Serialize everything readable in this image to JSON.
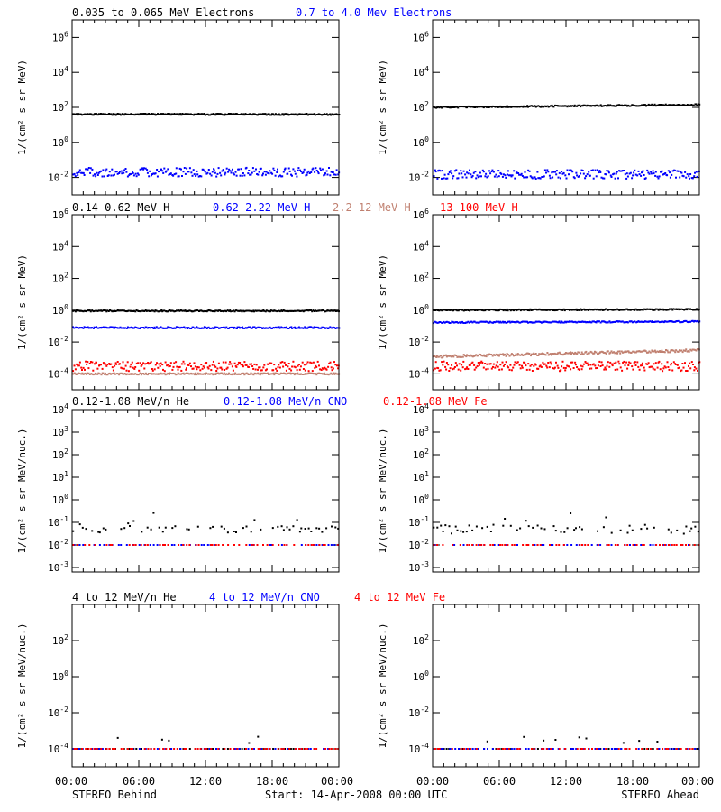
{
  "figure": {
    "left_footer": "STEREO Behind",
    "center_footer": "Start: 14-Apr-2008 00:00 UTC",
    "right_footer": "STEREO Ahead",
    "x_ticks": [
      "00:00",
      "06:00",
      "12:00",
      "18:00",
      "00:00"
    ]
  },
  "rows": [
    {
      "titles": [
        {
          "text": "0.035 to 0.065 MeV Electrons",
          "color": "#000000"
        },
        {
          "text": "0.7 to 4.0 Mev Electrons",
          "color": "#0000ff"
        }
      ],
      "ylabel": "1/(cm² s sr MeV)",
      "ylim_exp": [
        -3,
        7
      ],
      "ticks": [
        {
          "exp": 6,
          "label": "10^6"
        },
        {
          "exp": 4,
          "label": "10^4"
        },
        {
          "exp": 2,
          "label": "10^2"
        },
        {
          "exp": 0,
          "label": "10^0"
        },
        {
          "exp": -2,
          "label": "10^-2"
        }
      ]
    },
    {
      "titles": [
        {
          "text": "0.14-0.62 MeV H",
          "color": "#000000"
        },
        {
          "text": "0.62-2.22 MeV H",
          "color": "#0000ff"
        },
        {
          "text": "2.2-12 MeV H",
          "color": "#c08070"
        },
        {
          "text": "13-100 MeV H",
          "color": "#ff0000"
        }
      ],
      "ylabel": "1/(cm² s sr MeV)",
      "ylim_exp": [
        -5,
        6
      ],
      "ticks": [
        {
          "exp": 6,
          "label": "10^6"
        },
        {
          "exp": 4,
          "label": "10^4"
        },
        {
          "exp": 2,
          "label": "10^2"
        },
        {
          "exp": 0,
          "label": "10^0"
        },
        {
          "exp": -2,
          "label": "10^-2"
        },
        {
          "exp": -4,
          "label": "10^-4"
        }
      ]
    },
    {
      "titles": [
        {
          "text": "0.12-1.08 MeV/n He",
          "color": "#000000"
        },
        {
          "text": "0.12-1.08 MeV/n CNO",
          "color": "#0000ff"
        },
        {
          "text": "0.12-1.08 MeV Fe",
          "color": "#ff0000"
        }
      ],
      "ylabel": "1/(cm² s sr MeV/nuc.)",
      "ylim_exp": [
        -3.2,
        4
      ],
      "ticks": [
        {
          "exp": 4,
          "label": "10^4"
        },
        {
          "exp": 3,
          "label": "10^3"
        },
        {
          "exp": 2,
          "label": "10^2"
        },
        {
          "exp": 1,
          "label": "10^1"
        },
        {
          "exp": 0,
          "label": "10^0"
        },
        {
          "exp": -1,
          "label": "10^-1"
        },
        {
          "exp": -2,
          "label": "10^-2"
        },
        {
          "exp": -3,
          "label": "10^-3"
        }
      ]
    },
    {
      "titles": [
        {
          "text": "4 to 12 MeV/n He",
          "color": "#000000"
        },
        {
          "text": "4 to 12 MeV/n CNO",
          "color": "#0000ff"
        },
        {
          "text": "4 to 12 MeV Fe",
          "color": "#ff0000"
        }
      ],
      "ylabel": "1/(cm² s sr MeV/nuc.)",
      "ylim_exp": [
        -5,
        4
      ],
      "ticks": [
        {
          "exp": 2,
          "label": "10^2"
        },
        {
          "exp": 0,
          "label": "10^0"
        },
        {
          "exp": -2,
          "label": "10^-2"
        },
        {
          "exp": -4,
          "label": "10^-4"
        }
      ]
    }
  ],
  "chart_data": [
    {
      "type": "scatter",
      "panel": "STEREO Behind electrons",
      "yscale": "log",
      "x_range_hours": [
        0,
        24
      ],
      "series": [
        {
          "name": "0.035 to 0.065 MeV Electrons",
          "color": "#000000",
          "level": 40,
          "spread_exp": 0.04,
          "trend_exp": 0
        },
        {
          "name": "0.7 to 4.0 Mev Electrons",
          "color": "#0000ff",
          "level": 0.02,
          "spread_exp": 0.25,
          "trend_exp": 0
        }
      ]
    },
    {
      "type": "scatter",
      "panel": "STEREO Ahead electrons",
      "yscale": "log",
      "x_range_hours": [
        0,
        24
      ],
      "series": [
        {
          "name": "0.035 to 0.065 MeV Electrons",
          "color": "#000000",
          "level": 100,
          "spread_exp": 0.04,
          "trend_exp": 0.15
        },
        {
          "name": "0.7 to 4.0 Mev Electrons",
          "color": "#0000ff",
          "level": 0.015,
          "spread_exp": 0.25,
          "trend_exp": 0
        }
      ]
    },
    {
      "type": "scatter",
      "panel": "STEREO Behind protons",
      "yscale": "log",
      "x_range_hours": [
        0,
        24
      ],
      "series": [
        {
          "name": "0.14-0.62 MeV H",
          "color": "#000000",
          "level": 0.9,
          "spread_exp": 0.04,
          "trend_exp": 0
        },
        {
          "name": "0.62-2.22 MeV H",
          "color": "#0000ff",
          "level": 0.08,
          "spread_exp": 0.05,
          "trend_exp": 0
        },
        {
          "name": "2.2-12 MeV H",
          "color": "#c08070",
          "level": 0.0001,
          "spread_exp": 0.05,
          "trend_exp": 0
        },
        {
          "name": "13-100 MeV H",
          "color": "#ff0000",
          "level": 0.0003,
          "spread_exp": 0.3,
          "trend_exp": 0
        }
      ]
    },
    {
      "type": "scatter",
      "panel": "STEREO Ahead protons",
      "yscale": "log",
      "x_range_hours": [
        0,
        24
      ],
      "series": [
        {
          "name": "0.14-0.62 MeV H",
          "color": "#000000",
          "level": 1.0,
          "spread_exp": 0.04,
          "trend_exp": 0.05
        },
        {
          "name": "0.62-2.22 MeV H",
          "color": "#0000ff",
          "level": 0.17,
          "spread_exp": 0.04,
          "trend_exp": 0.05
        },
        {
          "name": "2.2-12 MeV H",
          "color": "#c08070",
          "level": 0.0012,
          "spread_exp": 0.08,
          "trend_exp": 0.4
        },
        {
          "name": "13-100 MeV H",
          "color": "#ff0000",
          "level": 0.0003,
          "spread_exp": 0.3,
          "trend_exp": 0
        }
      ]
    },
    {
      "type": "scatter",
      "panel": "STEREO Behind 0.12-1.08 MeV/n heavy ions",
      "yscale": "log",
      "x_range_hours": [
        0,
        24
      ],
      "series": [
        {
          "name": "0.12-1.08 MeV/n He",
          "color": "#000000",
          "level": 0.05,
          "spread_exp": 0.15,
          "trend_exp": 0,
          "sparse": true
        },
        {
          "name": "0.12-1.08 MeV/n CNO",
          "color": "#0000ff",
          "level": 0.01,
          "spread_exp": 0,
          "trend_exp": 0,
          "sparse": true
        },
        {
          "name": "0.12-1.08 MeV Fe",
          "color": "#ff0000",
          "level": 0.01,
          "spread_exp": 0,
          "trend_exp": 0,
          "sparse": true
        }
      ]
    },
    {
      "type": "scatter",
      "panel": "STEREO Ahead 0.12-1.08 MeV/n heavy ions",
      "yscale": "log",
      "x_range_hours": [
        0,
        24
      ],
      "series": [
        {
          "name": "0.12-1.08 MeV/n He",
          "color": "#000000",
          "level": 0.05,
          "spread_exp": 0.2,
          "trend_exp": 0,
          "sparse": true
        },
        {
          "name": "0.12-1.08 MeV/n CNO",
          "color": "#0000ff",
          "level": 0.01,
          "spread_exp": 0,
          "trend_exp": 0,
          "sparse": true
        },
        {
          "name": "0.12-1.08 MeV Fe",
          "color": "#ff0000",
          "level": 0.01,
          "spread_exp": 0,
          "trend_exp": 0,
          "sparse": true
        }
      ]
    },
    {
      "type": "scatter",
      "panel": "STEREO Behind 4-12 MeV/n heavy ions",
      "yscale": "log",
      "x_range_hours": [
        0,
        24
      ],
      "series": [
        {
          "name": "4 to 12 MeV/n He",
          "color": "#000000",
          "level": 0.0001,
          "spread_exp": 0,
          "trend_exp": 0,
          "sparse": true
        },
        {
          "name": "4 to 12 MeV/n CNO",
          "color": "#0000ff",
          "level": 0.0001,
          "spread_exp": 0,
          "trend_exp": 0,
          "sparse": true
        },
        {
          "name": "4 to 12 MeV Fe",
          "color": "#ff0000",
          "level": 0.0001,
          "spread_exp": 0,
          "trend_exp": 0,
          "sparse": true
        }
      ]
    },
    {
      "type": "scatter",
      "panel": "STEREO Ahead 4-12 MeV/n heavy ions",
      "yscale": "log",
      "x_range_hours": [
        0,
        24
      ],
      "series": [
        {
          "name": "4 to 12 MeV/n He",
          "color": "#000000",
          "level": 0.0001,
          "spread_exp": 0,
          "trend_exp": 0,
          "sparse": true
        },
        {
          "name": "4 to 12 MeV/n CNO",
          "color": "#0000ff",
          "level": 0.0001,
          "spread_exp": 0,
          "trend_exp": 0,
          "sparse": true
        },
        {
          "name": "4 to 12 MeV Fe",
          "color": "#ff0000",
          "level": 0.0001,
          "spread_exp": 0,
          "trend_exp": 0,
          "sparse": true
        }
      ]
    }
  ]
}
